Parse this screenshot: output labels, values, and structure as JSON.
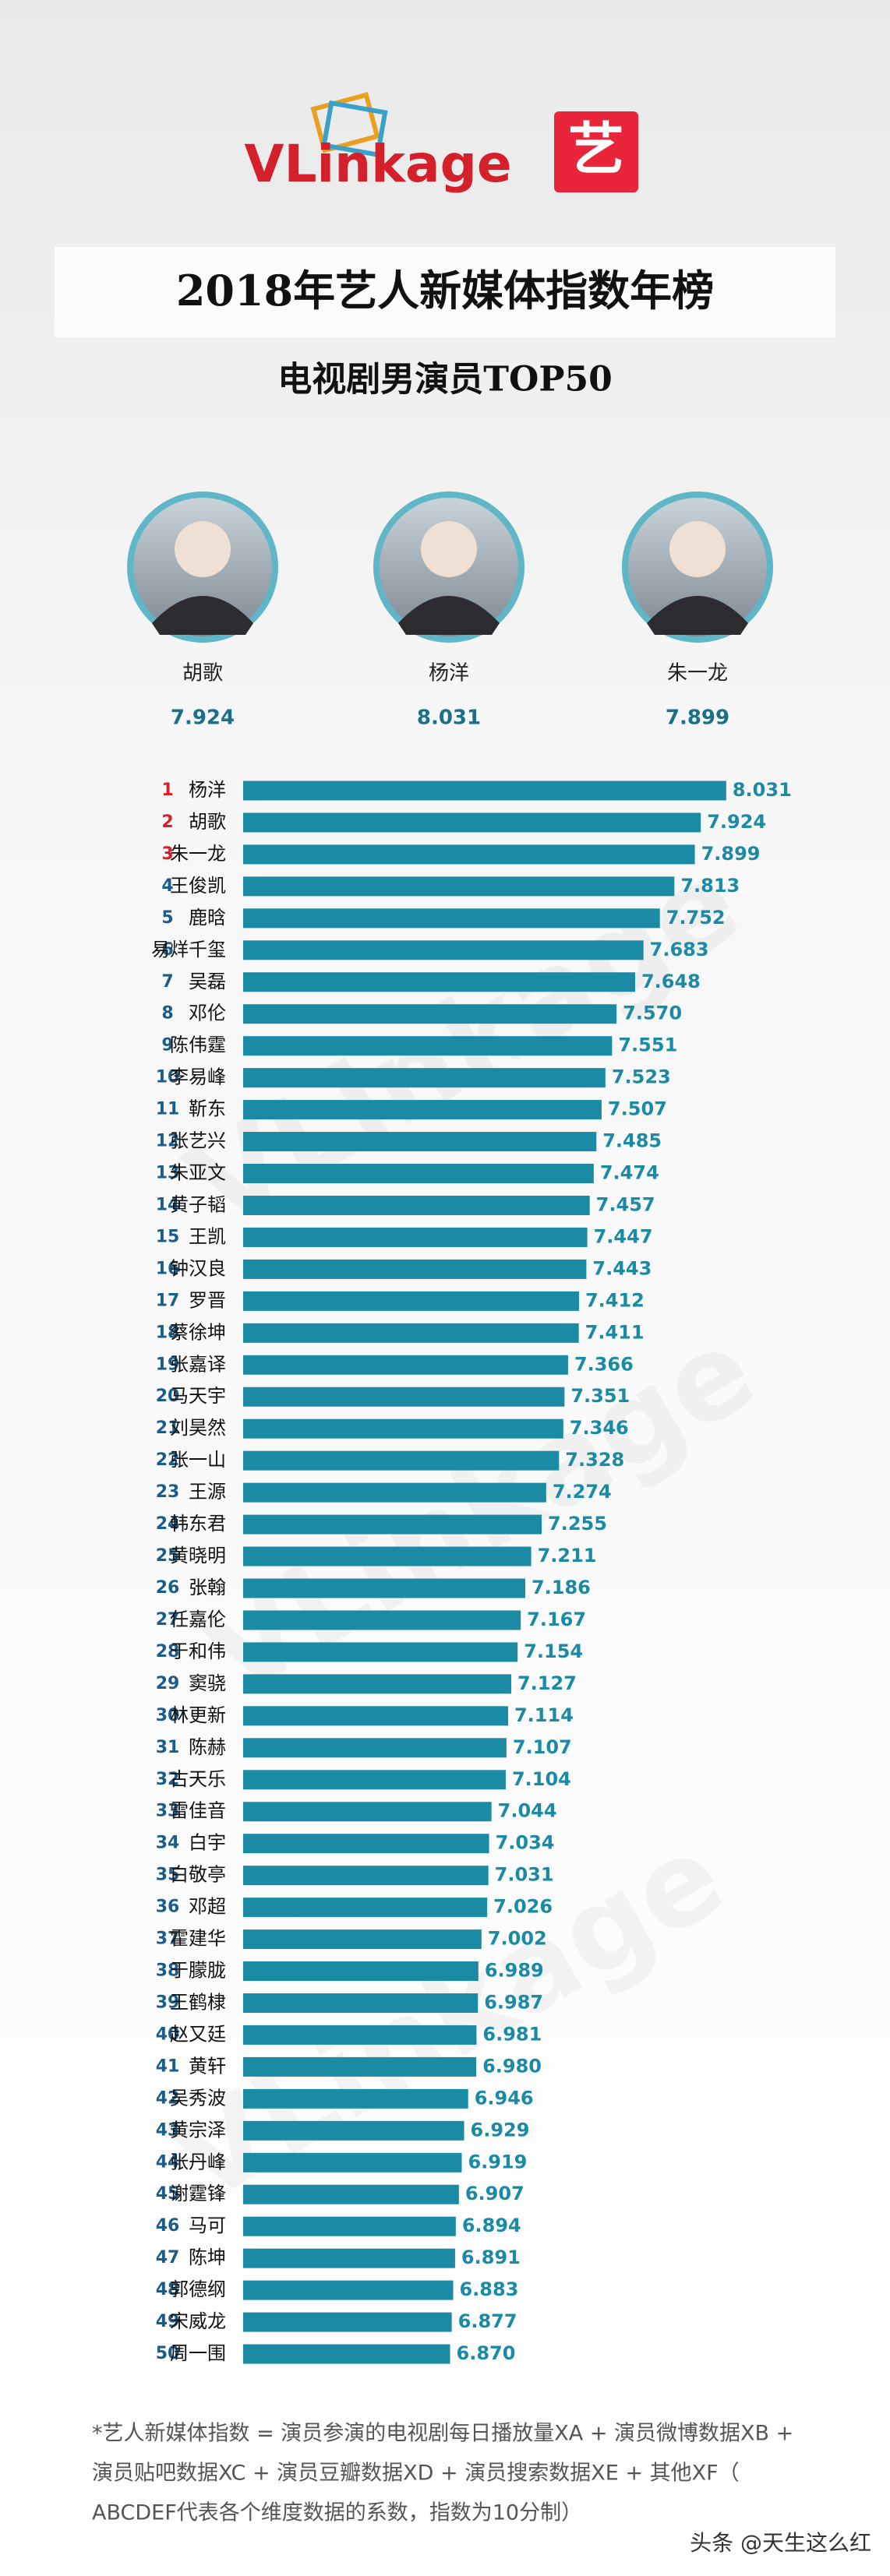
{
  "chart_data": {
    "type": "hbar",
    "logo": "VLinkage",
    "logo_icon": "艺",
    "title": "2018年艺人新媒体指数年榜",
    "subtitle": "电视剧男演员TOP50",
    "featured": [
      {
        "name": "胡歌",
        "value": 7.924
      },
      {
        "name": "杨洋",
        "value": 8.031
      },
      {
        "name": "朱一龙",
        "value": 7.899
      }
    ],
    "ranks": [
      1,
      2,
      3,
      4,
      5,
      6,
      7,
      8,
      9,
      10,
      11,
      12,
      13,
      14,
      15,
      16,
      17,
      18,
      19,
      20,
      21,
      22,
      23,
      24,
      25,
      26,
      27,
      28,
      29,
      30,
      31,
      32,
      33,
      34,
      35,
      36,
      37,
      38,
      39,
      40,
      41,
      42,
      43,
      44,
      45,
      46,
      47,
      48,
      49,
      50
    ],
    "categories": [
      "杨洋",
      "胡歌",
      "朱一龙",
      "王俊凯",
      "鹿晗",
      "易烊千玺",
      "吴磊",
      "邓伦",
      "陈伟霆",
      "李易峰",
      "靳东",
      "张艺兴",
      "朱亚文",
      "黄子韬",
      "王凯",
      "钟汉良",
      "罗晋",
      "蔡徐坤",
      "张嘉译",
      "马天宇",
      "刘昊然",
      "张一山",
      "王源",
      "韩东君",
      "黄晓明",
      "张翰",
      "任嘉伦",
      "于和伟",
      "窦骁",
      "林更新",
      "陈赫",
      "古天乐",
      "雷佳音",
      "白宇",
      "白敬亭",
      "邓超",
      "霍建华",
      "于朦胧",
      "王鹤棣",
      "赵又廷",
      "黄轩",
      "吴秀波",
      "黄宗泽",
      "张丹峰",
      "谢霆锋",
      "马可",
      "陈坤",
      "郭德纲",
      "宋威龙",
      "周一围"
    ],
    "values": [
      8.031,
      7.924,
      7.899,
      7.813,
      7.752,
      7.683,
      7.648,
      7.57,
      7.551,
      7.523,
      7.507,
      7.485,
      7.474,
      7.457,
      7.447,
      7.443,
      7.412,
      7.411,
      7.366,
      7.351,
      7.346,
      7.328,
      7.274,
      7.255,
      7.211,
      7.186,
      7.167,
      7.154,
      7.127,
      7.114,
      7.107,
      7.104,
      7.044,
      7.034,
      7.031,
      7.026,
      7.002,
      6.989,
      6.987,
      6.981,
      6.98,
      6.946,
      6.929,
      6.919,
      6.907,
      6.894,
      6.891,
      6.883,
      6.877,
      6.87
    ],
    "value_labels": [
      "8.031",
      "7.924",
      "7.899",
      "7.813",
      "7.752",
      "7.683",
      "7.648",
      "7.570",
      "7.551",
      "7.523",
      "7.507",
      "7.485",
      "7.474",
      "7.457",
      "7.447",
      "7.443",
      "7.412",
      "7.411",
      "7.366",
      "7.351",
      "7.346",
      "7.328",
      "7.274",
      "7.255",
      "7.211",
      "7.186",
      "7.167",
      "7.154",
      "7.127",
      "7.114",
      "7.107",
      "7.104",
      "7.044",
      "7.034",
      "7.031",
      "7.026",
      "7.002",
      "6.989",
      "6.987",
      "6.981",
      "6.980",
      "6.946",
      "6.929",
      "6.919",
      "6.907",
      "6.894",
      "6.891",
      "6.883",
      "6.877",
      "6.870"
    ],
    "color": "#1b8aa5",
    "xlim": [
      6,
      8.5
    ],
    "footnote": [
      "*艺人新媒体指数 = 演员参演的电视剧每日播放量XA + 演员微博数据XB +",
      "演员贴吧数据XC + 演员豆瓣数据XD + 演员搜索数据XE + 其他XF（",
      "ABCDEF代表各个维度数据的系数，指数为10分制）"
    ],
    "watermark": "头条 @天生这么红"
  }
}
